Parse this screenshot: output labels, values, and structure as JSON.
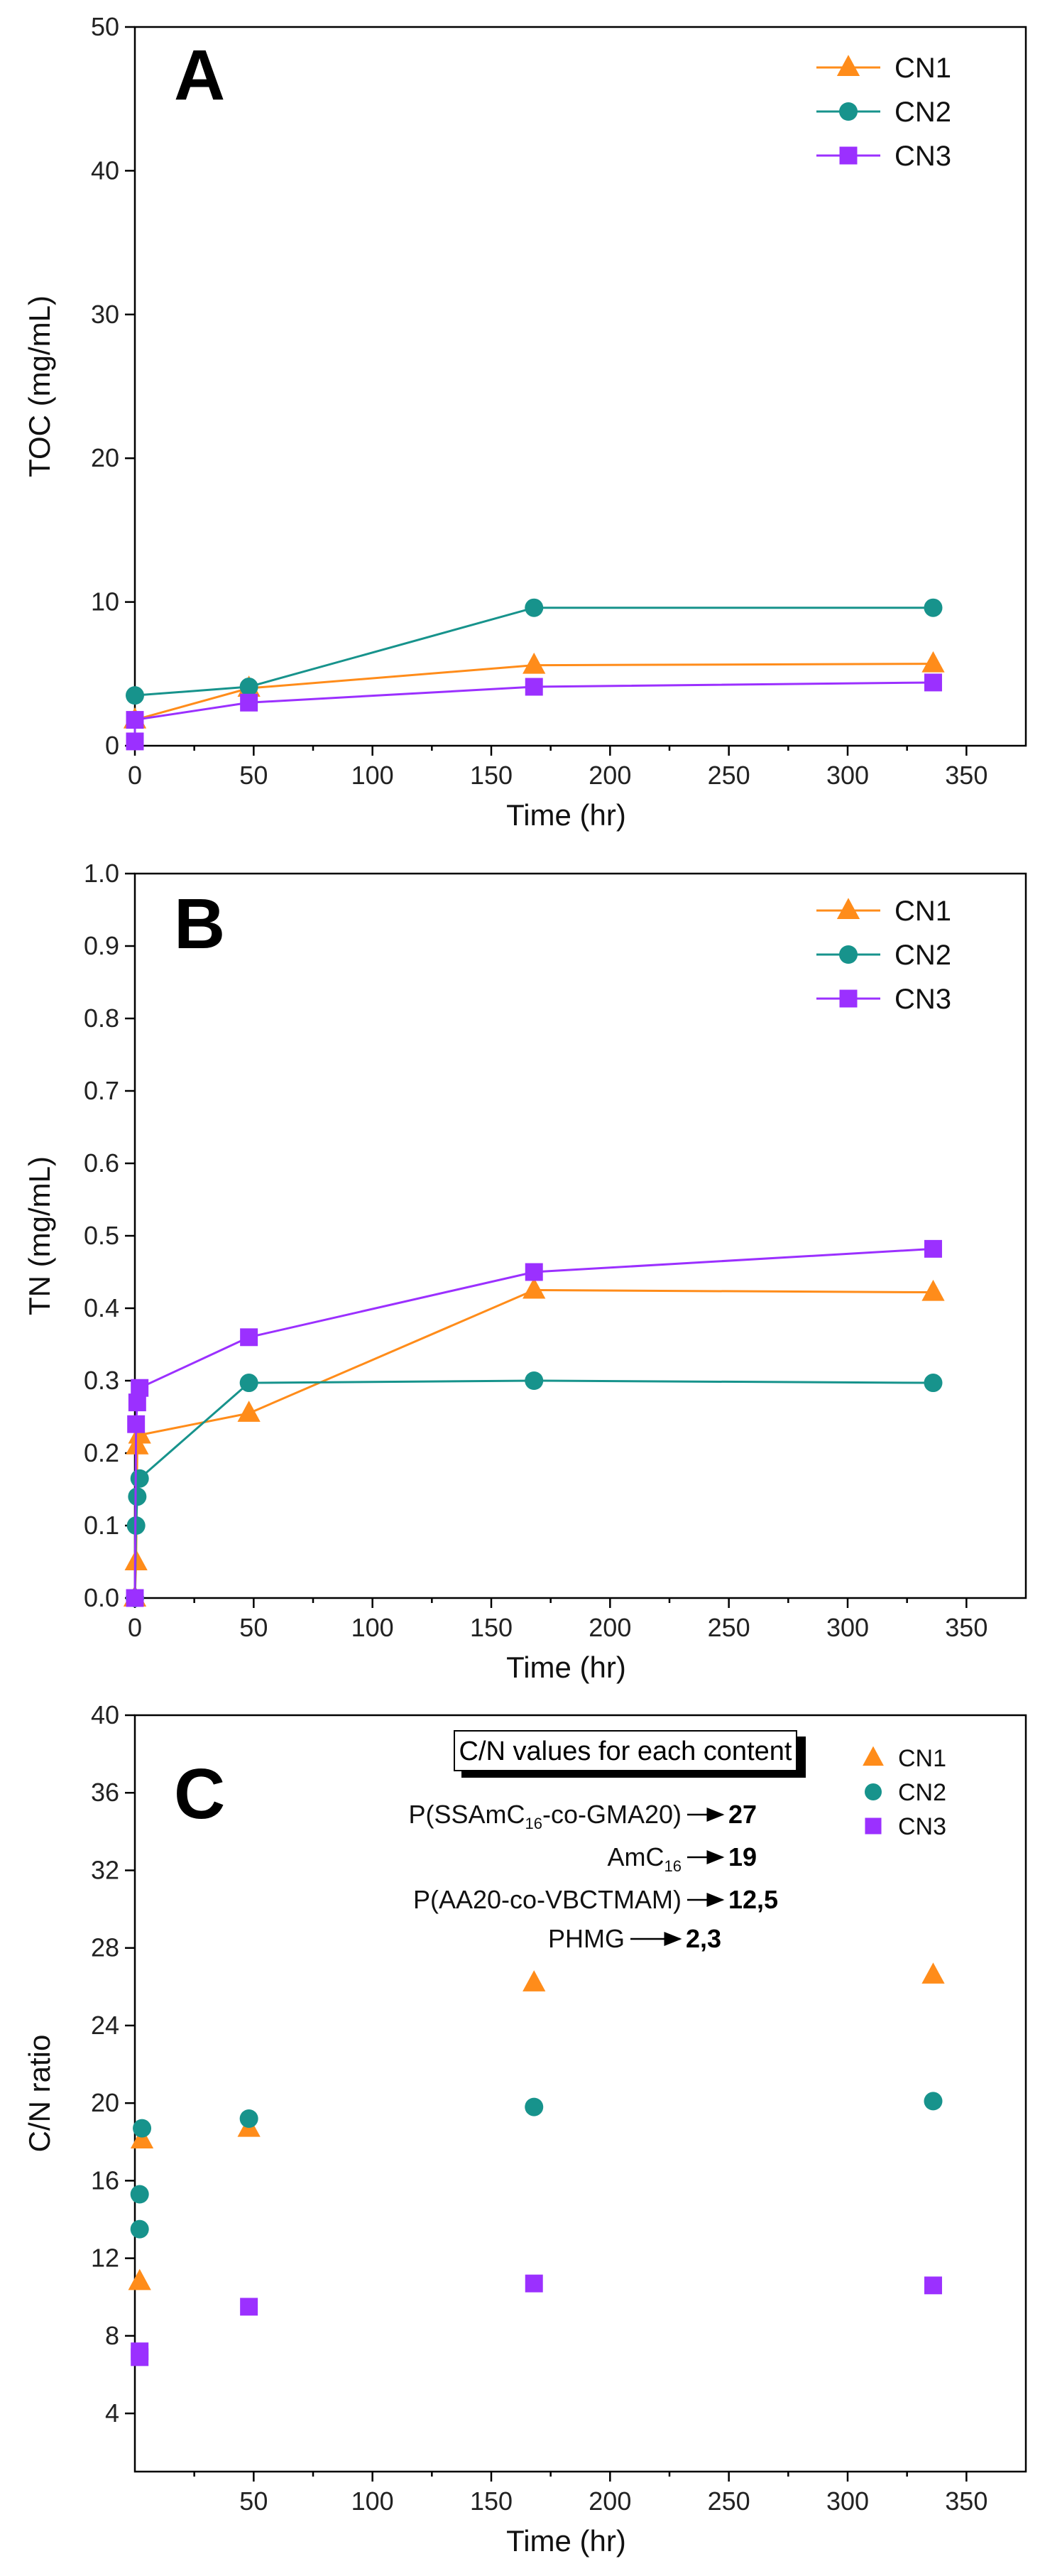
{
  "colors": {
    "CN1": "#ff8c1a",
    "CN2": "#17938c",
    "CN3": "#9b30ff",
    "axis": "#000000",
    "text": "#111111"
  },
  "chart_data": [
    {
      "id": "A",
      "type": "line",
      "panel_label": "A",
      "xlabel": "Time (hr)",
      "ylabel": "TOC (mg/mL)",
      "xlim": [
        0,
        375
      ],
      "ylim": [
        0,
        50
      ],
      "xticks": [
        0,
        50,
        100,
        150,
        200,
        250,
        300,
        350
      ],
      "yticks": [
        0,
        10,
        20,
        30,
        40,
        50
      ],
      "legend": "top-right",
      "series": [
        {
          "name": "CN1",
          "marker": "triangle",
          "x": [
            0,
            48,
            168,
            336
          ],
          "y": [
            1.8,
            4.0,
            5.6,
            5.7
          ]
        },
        {
          "name": "CN2",
          "marker": "circle",
          "x": [
            0,
            48,
            168,
            336
          ],
          "y": [
            3.5,
            4.1,
            9.6,
            9.6
          ]
        },
        {
          "name": "CN3",
          "marker": "square",
          "x": [
            0,
            0,
            48,
            168,
            336
          ],
          "y": [
            0.3,
            1.8,
            3.0,
            4.1,
            4.4
          ]
        }
      ]
    },
    {
      "id": "B",
      "type": "line",
      "panel_label": "B",
      "xlabel": "Time (hr)",
      "ylabel": "TN (mg/mL)",
      "xlim": [
        0,
        375
      ],
      "ylim": [
        0,
        1.0
      ],
      "xticks": [
        0,
        50,
        100,
        150,
        200,
        250,
        300,
        350
      ],
      "yticks": [
        0.0,
        0.1,
        0.2,
        0.3,
        0.4,
        0.5,
        0.6,
        0.7,
        0.8,
        0.9,
        1.0
      ],
      "legend": "top-right",
      "series": [
        {
          "name": "CN1",
          "marker": "triangle",
          "x": [
            0,
            0.5,
            1,
            2,
            48,
            168,
            336
          ],
          "y": [
            0.0,
            0.05,
            0.21,
            0.225,
            0.255,
            0.425,
            0.422
          ]
        },
        {
          "name": "CN2",
          "marker": "circle",
          "x": [
            0,
            0.5,
            1,
            2,
            48,
            168,
            336
          ],
          "y": [
            0.0,
            0.1,
            0.14,
            0.165,
            0.297,
            0.3,
            0.297
          ]
        },
        {
          "name": "CN3",
          "marker": "square",
          "x": [
            0,
            0.5,
            1,
            2,
            48,
            168,
            336
          ],
          "y": [
            0.0,
            0.24,
            0.27,
            0.29,
            0.36,
            0.45,
            0.482
          ]
        }
      ]
    },
    {
      "id": "C",
      "type": "scatter",
      "panel_label": "C",
      "xlabel": "Time (hr)",
      "ylabel": "C/N ratio",
      "xlim": [
        0,
        375
      ],
      "ylim": [
        1,
        40
      ],
      "xticks": [
        50,
        100,
        150,
        200,
        250,
        300,
        350
      ],
      "yticks": [
        4,
        8,
        12,
        16,
        20,
        24,
        28,
        32,
        36,
        40
      ],
      "legend": "top-right",
      "series": [
        {
          "name": "CN1",
          "marker": "triangle",
          "x": [
            2,
            3,
            48,
            168,
            336
          ],
          "y": [
            10.8,
            18.1,
            18.7,
            26.2,
            26.6
          ]
        },
        {
          "name": "CN2",
          "marker": "circle",
          "x": [
            2,
            2,
            3,
            48,
            168,
            336
          ],
          "y": [
            13.5,
            15.3,
            18.7,
            19.2,
            19.8,
            20.1
          ]
        },
        {
          "name": "CN3",
          "marker": "square",
          "x": [
            2,
            2,
            48,
            168,
            336
          ],
          "y": [
            6.9,
            7.2,
            9.5,
            10.7,
            10.6
          ]
        }
      ],
      "annotation": {
        "title": "C/N values for each content",
        "rows": [
          {
            "label": "P(SSAmC",
            "sub": "16",
            "suffix": "-co-GMA20)",
            "value": "27"
          },
          {
            "label": "AmC",
            "sub": "16",
            "suffix": "",
            "value": "19"
          },
          {
            "label": "P(AA20-co-VBCTMAM)",
            "sub": "",
            "suffix": "",
            "value": "12,5"
          },
          {
            "label": "PHMG",
            "sub": "",
            "suffix": "",
            "value": "2,3"
          }
        ]
      }
    }
  ]
}
